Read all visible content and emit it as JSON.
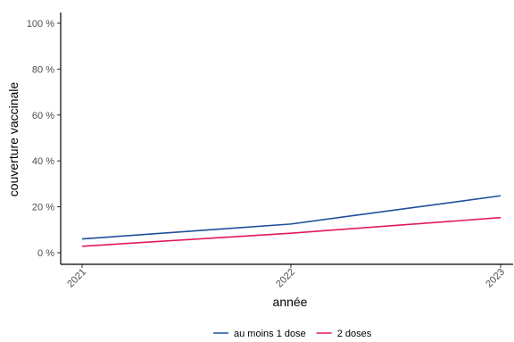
{
  "chart_data": {
    "type": "line",
    "title": "",
    "xlabel": "année",
    "ylabel": "couverture vaccinale",
    "x": [
      "2021",
      "2022",
      "2023"
    ],
    "xlim": [
      "2021",
      "2023"
    ],
    "ylim": [
      0,
      100
    ],
    "yticks": [
      0,
      20,
      40,
      60,
      80,
      100
    ],
    "ytick_labels": [
      "0 %",
      "20 %",
      "40 %",
      "60 %",
      "80 %",
      "100 %"
    ],
    "grid": false,
    "legend_position": "bottom",
    "series": [
      {
        "name": "au moins 1 dose",
        "color": "#1f4e9c",
        "values": [
          6,
          12.5,
          24.8
        ]
      },
      {
        "name": "2 doses",
        "color": "#e0185e",
        "values": [
          2.8,
          8.5,
          15.3
        ]
      }
    ]
  }
}
